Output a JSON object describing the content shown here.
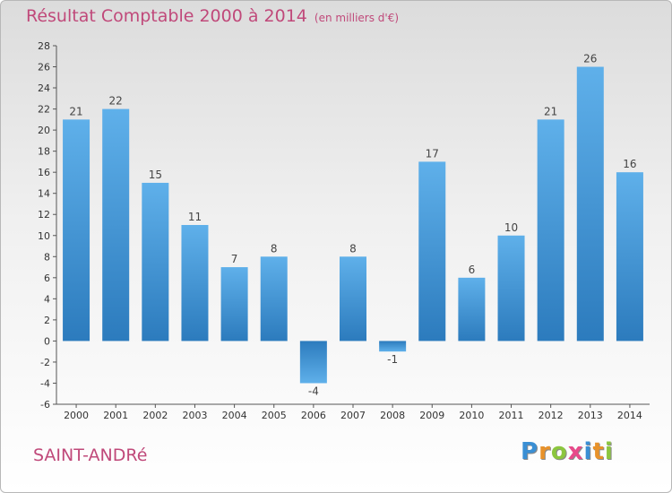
{
  "title": "Résultat Comptable 2000 à 2014",
  "unit": "(en milliers d'€)",
  "commune": "SAINT-ANDRé",
  "logo": {
    "text": "Proxiti",
    "letters": [
      {
        "char": "P",
        "color": "#3a8fd4"
      },
      {
        "char": "r",
        "color": "#e8922a"
      },
      {
        "char": "o",
        "color": "#8cc63f"
      },
      {
        "char": "x",
        "color": "#e84a8a"
      },
      {
        "char": "i",
        "color": "#3a8fd4"
      },
      {
        "char": "t",
        "color": "#e8922a"
      },
      {
        "char": "i",
        "color": "#8cc63f"
      }
    ]
  },
  "colors": {
    "bar_light": "#5fb0ea",
    "bar_dark": "#2c7bbd",
    "title": "#c0497a"
  },
  "chart_data": {
    "type": "bar",
    "title": "Résultat Comptable 2000 à 2014",
    "ylabel": "en milliers d'€",
    "xlabel": "",
    "categories": [
      "2000",
      "2001",
      "2002",
      "2003",
      "2004",
      "2005",
      "2006",
      "2007",
      "2008",
      "2009",
      "2010",
      "2011",
      "2012",
      "2013",
      "2014"
    ],
    "values": [
      21,
      22,
      15,
      11,
      7,
      8,
      -4,
      8,
      -1,
      17,
      6,
      10,
      21,
      26,
      16
    ],
    "ylim": [
      -6,
      28
    ],
    "yticks": [
      -6,
      -4,
      -2,
      0,
      2,
      4,
      6,
      8,
      10,
      12,
      14,
      16,
      18,
      20,
      22,
      24,
      26,
      28
    ],
    "grid": false,
    "legend": "none"
  }
}
